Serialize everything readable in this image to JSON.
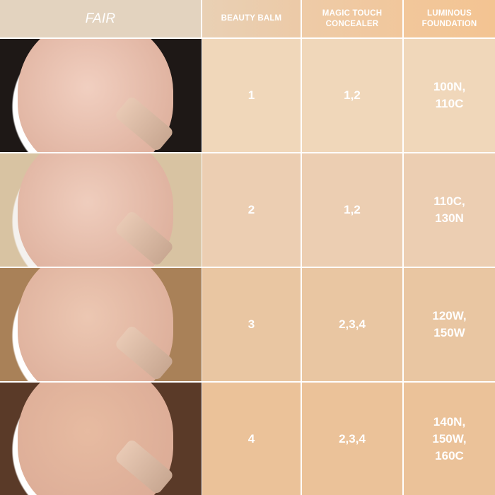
{
  "header": {
    "tone_label": "FAIR",
    "columns": [
      "BEAUTY BALM",
      "MAGIC TOUCH\nCONCEALER",
      "LUMINOUS\nFOUNDATION"
    ]
  },
  "rows": [
    {
      "beauty_balm": "1",
      "concealer": "1,2",
      "foundation": "100N,\n110C",
      "hair": "dark",
      "cell_color": "#f0d7ba"
    },
    {
      "beauty_balm": "2",
      "concealer": "1,2",
      "foundation": "110C,\n130N",
      "hair": "blonde",
      "cell_color": "#ecceb2"
    },
    {
      "beauty_balm": "3",
      "concealer": "2,3,4",
      "foundation": "120W,\n150W",
      "hair": "light-brown",
      "cell_color": "#e9c6a2"
    },
    {
      "beauty_balm": "4",
      "concealer": "2,3,4",
      "foundation": "140N,\n150W,\n160C",
      "hair": "brown",
      "cell_color": "#ebc299"
    }
  ],
  "colors": {
    "header_left": "#e3d3bf",
    "header_right": "#f2c593",
    "divider": "#ffffff"
  }
}
